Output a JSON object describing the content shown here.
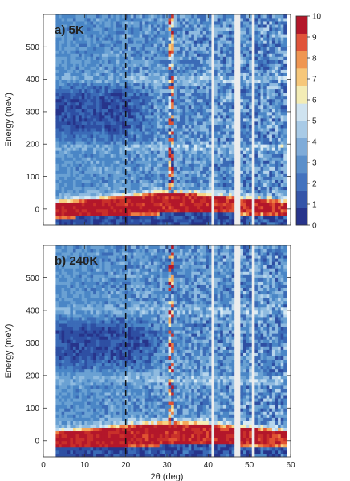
{
  "chart_data": [
    {
      "type": "heatmap",
      "panel_label": "a) 5K",
      "title": "",
      "xlabel": "",
      "ylabel": "Energy (meV)",
      "xlim": [
        0,
        60
      ],
      "ylim": [
        -50,
        600
      ],
      "x_ticks": [
        0,
        10,
        20,
        30,
        40,
        50,
        60
      ],
      "y_ticks": [
        0,
        100,
        200,
        300,
        400,
        500
      ],
      "x_tick_labels_visible": false,
      "data_x_range": [
        3,
        59
      ],
      "grid": false,
      "colormap": [
        "#27348b",
        "#2e4fa3",
        "#3b6bb7",
        "#4a86c6",
        "#6aa1d3",
        "#8fbbe0",
        "#b6d5ec",
        "#d9ebf4",
        "#f6edb5",
        "#f8d181",
        "#f4a85c",
        "#ec7e43",
        "#e05232",
        "#c9302a",
        "#b3172a"
      ],
      "dashed_line_x": 20,
      "gaps_x": [
        [
          40.5,
          41.2
        ],
        [
          46.5,
          48.0
        ],
        [
          50.3,
          51.2
        ]
      ],
      "bright_column_x": 31,
      "elastic_line": {
        "x": [
          3,
          10,
          20,
          30,
          40,
          50,
          59
        ],
        "energy_center": [
          -5,
          0,
          8,
          18,
          15,
          5,
          0
        ],
        "half_width": [
          22,
          24,
          28,
          32,
          26,
          22,
          18
        ]
      },
      "features": [
        {
          "type": "low-intensity region",
          "x_range": [
            3,
            20
          ],
          "energy_range": [
            230,
            370
          ]
        },
        {
          "type": "band",
          "energy": 400
        },
        {
          "type": "band",
          "energy": 190
        }
      ]
    },
    {
      "type": "heatmap",
      "panel_label": "b) 240K",
      "title": "",
      "xlabel": "2θ (deg)",
      "ylabel": "Energy (meV)",
      "xlim": [
        0,
        60
      ],
      "ylim": [
        -50,
        600
      ],
      "x_ticks": [
        0,
        10,
        20,
        30,
        40,
        50,
        60
      ],
      "y_ticks": [
        0,
        100,
        200,
        300,
        400,
        500
      ],
      "x_tick_labels_visible": true,
      "data_x_range": [
        3,
        59
      ],
      "grid": false,
      "dashed_line_x": 20,
      "gaps_x": [
        [
          40.5,
          41.2
        ],
        [
          46.5,
          48.0
        ],
        [
          50.3,
          51.2
        ]
      ],
      "bright_column_x": 31,
      "elastic_line": {
        "x": [
          3,
          10,
          20,
          30,
          40,
          50,
          59
        ],
        "energy_center": [
          0,
          5,
          12,
          20,
          18,
          10,
          5
        ],
        "half_width": [
          24,
          27,
          32,
          34,
          30,
          26,
          22
        ]
      },
      "features": [
        {
          "type": "low-intensity region",
          "x_range": [
            3,
            22
          ],
          "energy_range": [
            240,
            360
          ]
        },
        {
          "type": "band",
          "energy": 400
        },
        {
          "type": "band",
          "energy": 190
        }
      ]
    }
  ],
  "colorbar": {
    "range": [
      0,
      10
    ],
    "ticks": [
      0,
      1,
      2,
      3,
      4,
      5,
      6,
      7,
      8,
      9,
      10
    ],
    "colors": [
      "#27348b",
      "#3555a8",
      "#4473be",
      "#5b8fca",
      "#7fabd8",
      "#a8cae6",
      "#cfe3f0",
      "#f3ecb5",
      "#f6c77a",
      "#ef9652",
      "#e0543a",
      "#b3172a"
    ]
  }
}
